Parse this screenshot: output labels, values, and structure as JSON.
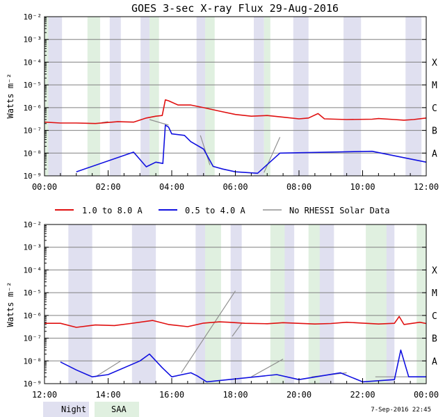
{
  "title": "GOES 3-sec X-ray Flux   29-Aug-2016",
  "footer_timestamp": "7-Sep-2016 22:45",
  "bottom_legend": {
    "night": "Night",
    "saa": "SAA"
  },
  "colors": {
    "night": "#e0e0f0",
    "saa": "#e0f0e0",
    "long": "#e01010",
    "short": "#1010e0",
    "norhessi": "#909090",
    "grid": "#808080"
  },
  "legend": {
    "long": "1.0 to 8.0 A",
    "short": "0.5 to 4.0 A",
    "norhessi": "No RHESSI Solar Data"
  },
  "chart_data": [
    {
      "type": "line",
      "panel": "top",
      "ylabel": "Watts m⁻²",
      "yscale": "log",
      "ylim": [
        1e-09,
        0.01
      ],
      "ytick_labels": [
        "10⁻⁹",
        "10⁻⁸",
        "10⁻⁷",
        "10⁻⁶",
        "10⁻⁵",
        "10⁻⁴",
        "10⁻³",
        "10⁻²"
      ],
      "flare_classes": [
        "A",
        "B",
        "C",
        "M",
        "X"
      ],
      "xlim_hours": [
        0,
        12
      ],
      "xtick_labels": [
        "00:00",
        "02:00",
        "04:00",
        "06:00",
        "08:00",
        "10:00",
        "12:00"
      ],
      "night_intervals_hours": [
        [
          0.1,
          0.55
        ],
        [
          2.05,
          2.4
        ],
        [
          3.02,
          3.3
        ],
        [
          4.78,
          5.05
        ],
        [
          6.58,
          6.9
        ],
        [
          7.82,
          8.3
        ],
        [
          9.4,
          9.95
        ],
        [
          11.35,
          11.85
        ]
      ],
      "saa_intervals_hours": [
        [
          0.0,
          0.12
        ],
        [
          1.35,
          1.75
        ],
        [
          3.3,
          3.6
        ],
        [
          5.05,
          5.35
        ],
        [
          6.9,
          7.1
        ]
      ],
      "long_channel": {
        "name": "1.0 to 8.0 A",
        "points": [
          [
            0,
            2.3e-07
          ],
          [
            0.5,
            2.1e-07
          ],
          [
            1.0,
            2.1e-07
          ],
          [
            1.6,
            2e-07
          ],
          [
            2.3,
            2.4e-07
          ],
          [
            2.8,
            2.3e-07
          ],
          [
            3.2,
            3.5e-07
          ],
          [
            3.5,
            4.2e-07
          ],
          [
            3.7,
            4.5e-07
          ],
          [
            3.8,
            2.2e-06
          ],
          [
            3.9,
            2e-06
          ],
          [
            4.2,
            1.3e-06
          ],
          [
            4.6,
            1.3e-06
          ],
          [
            5.0,
            1e-06
          ],
          [
            5.5,
            7e-07
          ],
          [
            6.0,
            5e-07
          ],
          [
            6.5,
            4.2e-07
          ],
          [
            7.0,
            4.5e-07
          ],
          [
            7.5,
            3.8e-07
          ],
          [
            8.0,
            3.2e-07
          ],
          [
            8.3,
            3.5e-07
          ],
          [
            8.6,
            5.5e-07
          ],
          [
            8.8,
            3.2e-07
          ],
          [
            9.5,
            3e-07
          ],
          [
            10.3,
            3.1e-07
          ],
          [
            10.5,
            3.3e-07
          ],
          [
            11.0,
            3e-07
          ],
          [
            11.3,
            2.8e-07
          ],
          [
            11.6,
            3e-07
          ],
          [
            12,
            3.5e-07
          ]
        ]
      },
      "short_channel": {
        "name": "0.5 to 4.0 A",
        "points": [
          [
            1.0,
            1.5e-09
          ],
          [
            2.8,
            1.1e-08
          ],
          [
            3.2,
            2.5e-09
          ],
          [
            3.5,
            4e-09
          ],
          [
            3.72,
            3.5e-09
          ],
          [
            3.8,
            1.7e-07
          ],
          [
            3.9,
            1.4e-07
          ],
          [
            4.0,
            7e-08
          ],
          [
            4.4,
            6e-08
          ],
          [
            4.6,
            3.2e-08
          ],
          [
            5.0,
            1.5e-08
          ],
          [
            5.3,
            2.6e-09
          ],
          [
            5.6,
            2e-09
          ],
          [
            6.0,
            1.5e-09
          ],
          [
            6.7,
            1.3e-09
          ],
          [
            7.4,
            1e-08
          ],
          [
            10.3,
            1.2e-08
          ],
          [
            12,
            4e-09
          ]
        ]
      },
      "no_rhessi_segments": [
        {
          "name": "No RHESSI Solar Data",
          "points": [
            [
              1.8,
              2.2e-07
            ],
            [
              2.0,
              2.4e-07
            ]
          ]
        },
        {
          "name": "No RHESSI Solar Data",
          "points": [
            [
              3.3,
              3e-07
            ],
            [
              3.9,
              1.7e-07
            ]
          ]
        },
        {
          "name": "No RHESSI Solar Data",
          "points": [
            [
              4.9,
              6e-08
            ],
            [
              5.2,
              3e-09
            ]
          ]
        },
        {
          "name": "No RHESSI Solar Data",
          "points": [
            [
              6.9,
              1.4e-09
            ],
            [
              7.4,
              5e-08
            ]
          ]
        }
      ]
    },
    {
      "type": "line",
      "panel": "bottom",
      "ylabel": "Watts m⁻²",
      "yscale": "log",
      "ylim": [
        1e-09,
        0.01
      ],
      "ytick_labels": [
        "10⁻⁹",
        "10⁻⁸",
        "10⁻⁷",
        "10⁻⁶",
        "10⁻⁵",
        "10⁻⁴",
        "10⁻³",
        "10⁻²"
      ],
      "flare_classes": [
        "A",
        "B",
        "C",
        "M",
        "X"
      ],
      "xlim_hours": [
        12,
        24
      ],
      "xtick_labels": [
        "12:00",
        "14:00",
        "16:00",
        "18:00",
        "20:00",
        "22:00",
        "00:00"
      ],
      "night_intervals_hours": [
        [
          12.75,
          13.5
        ],
        [
          14.75,
          15.5
        ],
        [
          16.75,
          17.5
        ],
        [
          17.85,
          18.2
        ],
        [
          19.3,
          19.85
        ],
        [
          20.6,
          21.1
        ],
        [
          22.65,
          23.0
        ]
      ],
      "saa_intervals_hours": [
        [
          17.05,
          17.55
        ],
        [
          19.1,
          19.55
        ],
        [
          20.3,
          20.65
        ],
        [
          22.1,
          22.75
        ],
        [
          23.7,
          24.0
        ]
      ],
      "long_channel": {
        "name": "1.0 to 8.0 A",
        "points": [
          [
            12,
            4.5e-07
          ],
          [
            12.5,
            4.5e-07
          ],
          [
            13.0,
            3e-07
          ],
          [
            13.6,
            3.8e-07
          ],
          [
            14.2,
            3.6e-07
          ],
          [
            14.7,
            4.4e-07
          ],
          [
            15.4,
            6e-07
          ],
          [
            15.9,
            4e-07
          ],
          [
            16.5,
            3.2e-07
          ],
          [
            17.0,
            4.6e-07
          ],
          [
            17.5,
            5.2e-07
          ],
          [
            17.8,
            5e-07
          ],
          [
            18.3,
            4.5e-07
          ],
          [
            19.0,
            4.3e-07
          ],
          [
            19.5,
            4.8e-07
          ],
          [
            20.5,
            4.2e-07
          ],
          [
            21.0,
            4.4e-07
          ],
          [
            21.5,
            5e-07
          ],
          [
            22.0,
            4.6e-07
          ],
          [
            22.5,
            4.2e-07
          ],
          [
            23.0,
            4.5e-07
          ],
          [
            23.15,
            9e-07
          ],
          [
            23.3,
            4e-07
          ],
          [
            23.8,
            5e-07
          ],
          [
            24,
            4.4e-07
          ]
        ]
      },
      "short_channel": {
        "name": "0.5 to 4.0 A",
        "points": [
          [
            12.5,
            9e-09
          ],
          [
            13,
            4e-09
          ],
          [
            13.5,
            2e-09
          ],
          [
            14,
            2.5e-09
          ],
          [
            15.0,
            1e-08
          ],
          [
            15.3,
            2e-08
          ],
          [
            15.7,
            5e-09
          ],
          [
            16.0,
            2e-09
          ],
          [
            16.6,
            3e-09
          ],
          [
            16.8,
            2.2e-09
          ],
          [
            17.1,
            1.2e-09
          ],
          [
            19.3,
            2.5e-09
          ],
          [
            20.0,
            1.5e-09
          ],
          [
            21.3,
            3e-09
          ],
          [
            22.0,
            1.2e-09
          ],
          [
            23.0,
            1.5e-09
          ],
          [
            23.2,
            3e-08
          ],
          [
            23.45,
            2e-09
          ],
          [
            24,
            2e-09
          ]
        ]
      },
      "no_rhessi_segments": [
        {
          "name": "No RHESSI Solar Data",
          "points": [
            [
              13.6,
              2e-09
            ],
            [
              14.4,
              1e-08
            ]
          ]
        },
        {
          "name": "No RHESSI Solar Data",
          "points": [
            [
              16.3,
              3e-09
            ],
            [
              18.0,
              1.2e-05
            ]
          ]
        },
        {
          "name": "No RHESSI Solar Data",
          "points": [
            [
              17.9,
              1.2e-07
            ],
            [
              18.2,
              4.5e-07
            ]
          ]
        },
        {
          "name": "No RHESSI Solar Data",
          "points": [
            [
              18.5,
              2e-09
            ],
            [
              19.5,
              1.2e-08
            ]
          ]
        },
        {
          "name": "No RHESSI Solar Data",
          "points": [
            [
              20.4,
              2e-09
            ],
            [
              21.5,
              3e-09
            ]
          ]
        },
        {
          "name": "No RHESSI Solar Data",
          "points": [
            [
              22.4,
              2e-09
            ],
            [
              23.9,
              2e-09
            ]
          ]
        }
      ]
    }
  ]
}
